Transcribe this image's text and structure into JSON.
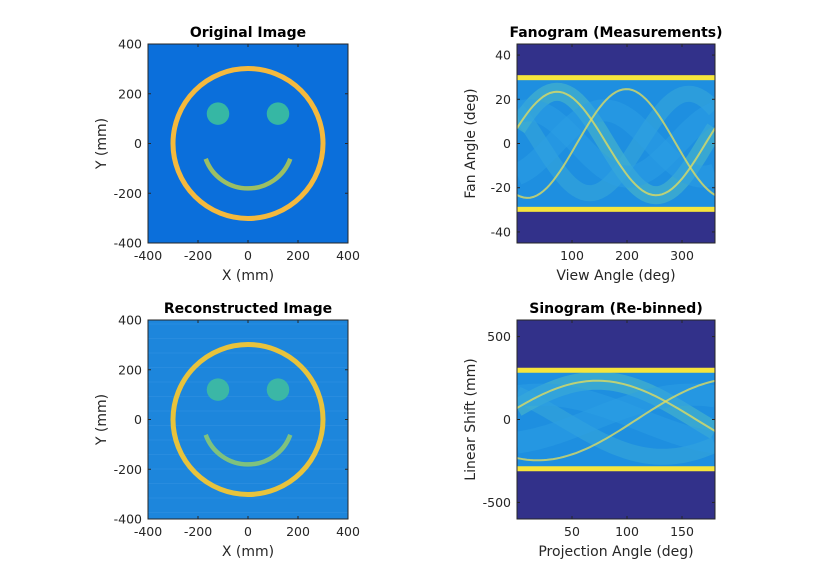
{
  "chart_data": [
    {
      "type": "heatmap",
      "title": "Original Image",
      "xlabel": "X (mm)",
      "ylabel": "Y (mm)",
      "xlim": [
        -400,
        400
      ],
      "ylim": [
        -400,
        400
      ],
      "xticks": [
        -400,
        -200,
        0,
        200,
        400
      ],
      "yticks": [
        -400,
        -200,
        0,
        200,
        400
      ],
      "phantom": {
        "face_ring_radius": 300,
        "eyes": [
          {
            "x": -120,
            "y": 120,
            "r": 45
          },
          {
            "x": 120,
            "y": 120,
            "r": 45
          }
        ],
        "smile_arc": {
          "radius": 180,
          "center": [
            0,
            0
          ],
          "from_deg": 200,
          "to_deg": 340
        }
      },
      "colors": {
        "background": "#0b6fdb",
        "ring": "#f5b93d",
        "eyes": "#36b7a4",
        "smile": "#9cbf63"
      }
    },
    {
      "type": "heatmap",
      "title": "Fanogram (Measurements)",
      "xlabel": "View Angle (deg)",
      "ylabel": "Fan Angle (deg)",
      "xlim": [
        0,
        360
      ],
      "ylim": [
        -45,
        45
      ],
      "xticks": [
        100,
        200,
        300
      ],
      "yticks": [
        -40,
        -20,
        0,
        20,
        40
      ],
      "bright_band_angles": [
        30,
        -30
      ],
      "colors": {
        "background": "#32318a",
        "data": "#1e8fe0",
        "band": "#f6e53c"
      }
    },
    {
      "type": "heatmap",
      "title": "Reconstructed Image",
      "xlabel": "X (mm)",
      "ylabel": "Y (mm)",
      "xlim": [
        -400,
        400
      ],
      "ylim": [
        -400,
        400
      ],
      "xticks": [
        -400,
        -200,
        0,
        200,
        400
      ],
      "yticks": [
        -400,
        -200,
        0,
        200,
        400
      ],
      "colors": {
        "background": "#1d86dc",
        "ring": "#e8c33c",
        "eyes": "#3bb7a6",
        "smile": "#7fc27e"
      }
    },
    {
      "type": "heatmap",
      "title": "Sinogram (Re-binned)",
      "xlabel": "Projection Angle (deg)",
      "ylabel": "Linear Shift (mm)",
      "xlim": [
        0,
        180
      ],
      "ylim": [
        -600,
        600
      ],
      "xticks": [
        50,
        100,
        150
      ],
      "yticks": [
        -500,
        0,
        500
      ],
      "bright_band_shifts": [
        300,
        -300
      ],
      "colors": {
        "background": "#32318a",
        "data": "#1e8fe0",
        "band": "#f6e53c"
      }
    }
  ]
}
